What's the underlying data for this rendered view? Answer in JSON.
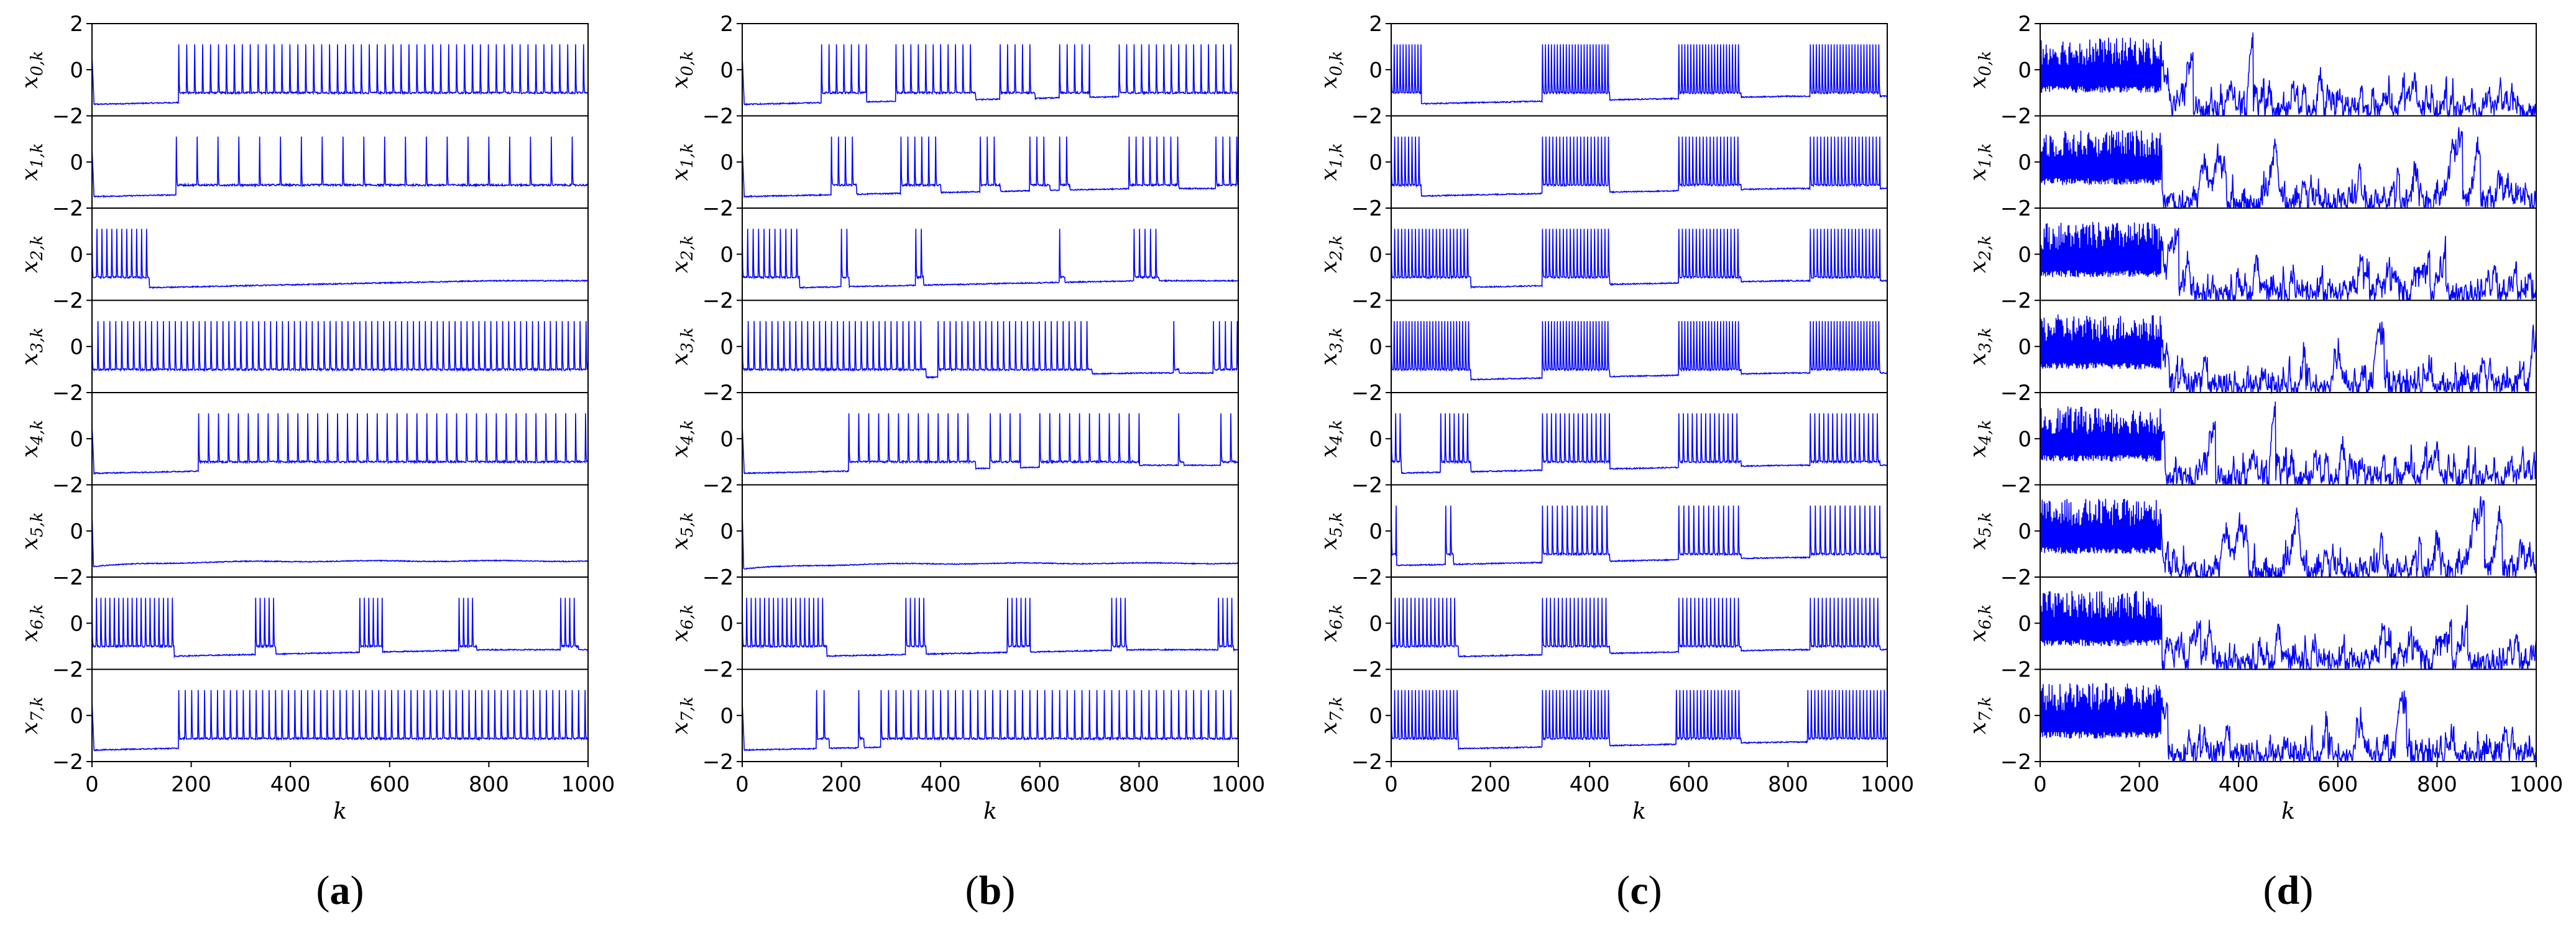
{
  "figure": {
    "panel_labels": [
      {
        "open": "(",
        "letter": "a",
        "close": ")"
      },
      {
        "open": "(",
        "letter": "b",
        "close": ")"
      },
      {
        "open": "(",
        "letter": "c",
        "close": ")"
      },
      {
        "open": "(",
        "letter": "d",
        "close": ")"
      }
    ]
  },
  "chart_data": [
    {
      "type": "line",
      "panel": "a",
      "xlabel": "k",
      "xlim": [
        0,
        1000
      ],
      "ylim": [
        -2,
        2
      ],
      "xticks": [
        "0",
        "200",
        "400",
        "600",
        "800",
        "1000"
      ],
      "yticks": [
        "2",
        "0",
        "−2"
      ],
      "line_color": "#0000ff",
      "series": [
        {
          "name": "x0,k",
          "label_main": "x",
          "label_sub": "0,k",
          "pattern": "spikes",
          "onset": 175,
          "interval": 16
        },
        {
          "name": "x1,k",
          "label_main": "x",
          "label_sub": "1,k",
          "pattern": "spikes",
          "onset": 170,
          "interval": 42
        },
        {
          "name": "x2,k",
          "label_main": "x",
          "label_sub": "2,k",
          "pattern": "early-burst",
          "onset": 0,
          "end": 115,
          "interval": 10
        },
        {
          "name": "x3,k",
          "label_main": "x",
          "label_sub": "3,k",
          "pattern": "spikes",
          "onset": 0,
          "interval": 12
        },
        {
          "name": "x4,k",
          "label_main": "x",
          "label_sub": "4,k",
          "pattern": "spikes",
          "onset": 215,
          "interval": 20
        },
        {
          "name": "x5,k",
          "label_main": "x",
          "label_sub": "5,k",
          "pattern": "silent",
          "baseline": -1.3
        },
        {
          "name": "x6,k",
          "label_main": "x",
          "label_sub": "6,k",
          "pattern": "bursts",
          "bursts": [
            [
              0,
              165
            ],
            [
              330,
              370
            ],
            [
              540,
              585
            ],
            [
              740,
              775
            ],
            [
              945,
              980
            ]
          ],
          "interval": 9
        },
        {
          "name": "x7,k",
          "label_main": "x",
          "label_sub": "7,k",
          "pattern": "spikes",
          "onset": 175,
          "interval": 13
        }
      ]
    },
    {
      "type": "line",
      "panel": "b",
      "xlabel": "k",
      "xlim": [
        0,
        1000
      ],
      "ylim": [
        -2,
        2
      ],
      "xticks": [
        "0",
        "200",
        "400",
        "600",
        "800",
        "1000"
      ],
      "yticks": [
        "2",
        "0",
        "−2"
      ],
      "line_color": "#0000ff",
      "series": [
        {
          "name": "x0,k",
          "label_main": "x",
          "label_sub": "0,k",
          "pattern": "bursts",
          "bursts": [
            [
              160,
              250
            ],
            [
              310,
              470
            ],
            [
              520,
              590
            ],
            [
              640,
              700
            ],
            [
              760,
              1000
            ]
          ],
          "interval": 15
        },
        {
          "name": "x1,k",
          "label_main": "x",
          "label_sub": "1,k",
          "pattern": "bursts",
          "bursts": [
            [
              180,
              230
            ],
            [
              320,
              400
            ],
            [
              480,
              520
            ],
            [
              580,
              620
            ],
            [
              640,
              660
            ],
            [
              780,
              880
            ],
            [
              955,
              1000
            ]
          ],
          "interval": 14
        },
        {
          "name": "x2,k",
          "label_main": "x",
          "label_sub": "2,k",
          "pattern": "bursts",
          "bursts": [
            [
              0,
              115
            ],
            [
              200,
              215
            ],
            [
              350,
              365
            ],
            [
              640,
              650
            ],
            [
              790,
              840
            ]
          ],
          "interval": 11
        },
        {
          "name": "x3,k",
          "label_main": "x",
          "label_sub": "3,k",
          "pattern": "bursts",
          "bursts": [
            [
              0,
              370
            ],
            [
              395,
              705
            ],
            [
              870,
              880
            ],
            [
              950,
              1000
            ]
          ],
          "interval": 12
        },
        {
          "name": "x4,k",
          "label_main": "x",
          "label_sub": "4,k",
          "pattern": "bursts",
          "bursts": [
            [
              215,
              470
            ],
            [
              500,
              560
            ],
            [
              600,
              800
            ],
            [
              880,
              890
            ],
            [
              965,
              1000
            ]
          ],
          "interval": 20
        },
        {
          "name": "x5,k",
          "label_main": "x",
          "label_sub": "5,k",
          "pattern": "silent",
          "baseline": -1.4
        },
        {
          "name": "x6,k",
          "label_main": "x",
          "label_sub": "6,k",
          "pattern": "bursts",
          "bursts": [
            [
              0,
              170
            ],
            [
              330,
              370
            ],
            [
              535,
              580
            ],
            [
              745,
              775
            ],
            [
              960,
              990
            ]
          ],
          "interval": 9
        },
        {
          "name": "x7,k",
          "label_main": "x",
          "label_sub": "7,k",
          "pattern": "bursts",
          "bursts": [
            [
              150,
              175
            ],
            [
              235,
              245
            ],
            [
              280,
              1000
            ]
          ],
          "interval": 15
        }
      ]
    },
    {
      "type": "line",
      "panel": "c",
      "xlabel": "k",
      "xlim": [
        0,
        1000
      ],
      "ylim": [
        -2,
        2
      ],
      "xticks": [
        "0",
        "200",
        "400",
        "600",
        "800",
        "1000"
      ],
      "yticks": [
        "2",
        "0",
        "−2"
      ],
      "line_color": "#0000ff",
      "series": [
        {
          "name": "x0,k",
          "label_main": "x",
          "label_sub": "0,k",
          "pattern": "bursts",
          "bursts": [
            [
              0,
              60
            ],
            [
              305,
              440
            ],
            [
              580,
              705
            ],
            [
              845,
              985
            ]
          ],
          "interval": 6
        },
        {
          "name": "x1,k",
          "label_main": "x",
          "label_sub": "1,k",
          "pattern": "bursts",
          "bursts": [
            [
              0,
              60
            ],
            [
              305,
              440
            ],
            [
              580,
              705
            ],
            [
              845,
              985
            ]
          ],
          "interval": 7
        },
        {
          "name": "x2,k",
          "label_main": "x",
          "label_sub": "2,k",
          "pattern": "bursts",
          "bursts": [
            [
              0,
              160
            ],
            [
              305,
              440
            ],
            [
              580,
              705
            ],
            [
              845,
              985
            ]
          ],
          "interval": 7
        },
        {
          "name": "x3,k",
          "label_main": "x",
          "label_sub": "3,k",
          "pattern": "bursts",
          "bursts": [
            [
              0,
              160
            ],
            [
              305,
              440
            ],
            [
              580,
              705
            ],
            [
              845,
              985
            ]
          ],
          "interval": 6
        },
        {
          "name": "x4,k",
          "label_main": "x",
          "label_sub": "4,k",
          "pattern": "bursts",
          "bursts": [
            [
              0,
              20
            ],
            [
              100,
              160
            ],
            [
              305,
              440
            ],
            [
              580,
              705
            ],
            [
              845,
              985
            ]
          ],
          "interval": 9
        },
        {
          "name": "x5,k",
          "label_main": "x",
          "label_sub": "5,k",
          "pattern": "bursts",
          "bursts": [
            [
              0,
              10
            ],
            [
              110,
              125
            ],
            [
              305,
              440
            ],
            [
              580,
              705
            ],
            [
              845,
              985
            ]
          ],
          "interval": 10
        },
        {
          "name": "x6,k",
          "label_main": "x",
          "label_sub": "6,k",
          "pattern": "bursts",
          "bursts": [
            [
              0,
              135
            ],
            [
              305,
              440
            ],
            [
              580,
              705
            ],
            [
              845,
              985
            ]
          ],
          "interval": 8
        },
        {
          "name": "x7,k",
          "label_main": "x",
          "label_sub": "7,k",
          "pattern": "bursts",
          "bursts": [
            [
              0,
              135
            ],
            [
              305,
              440
            ],
            [
              575,
              705
            ],
            [
              840,
              1000
            ]
          ],
          "interval": 7
        }
      ]
    },
    {
      "type": "line",
      "panel": "d",
      "xlabel": "k",
      "xlim": [
        0,
        1000
      ],
      "ylim": [
        -2,
        2
      ],
      "xticks": [
        "0",
        "200",
        "400",
        "600",
        "800",
        "1000"
      ],
      "yticks": [
        "2",
        "0",
        "−2"
      ],
      "line_color": "#0000ff",
      "series": [
        {
          "name": "x0,k",
          "label_main": "x",
          "label_sub": "0,k",
          "pattern": "chaotic",
          "dense_until": 245
        },
        {
          "name": "x1,k",
          "label_main": "x",
          "label_sub": "1,k",
          "pattern": "chaotic",
          "dense_until": 245
        },
        {
          "name": "x2,k",
          "label_main": "x",
          "label_sub": "2,k",
          "pattern": "chaotic",
          "dense_until": 245
        },
        {
          "name": "x3,k",
          "label_main": "x",
          "label_sub": "3,k",
          "pattern": "chaotic",
          "dense_until": 245
        },
        {
          "name": "x4,k",
          "label_main": "x",
          "label_sub": "4,k",
          "pattern": "chaotic",
          "dense_until": 245
        },
        {
          "name": "x5,k",
          "label_main": "x",
          "label_sub": "5,k",
          "pattern": "chaotic",
          "dense_until": 245
        },
        {
          "name": "x6,k",
          "label_main": "x",
          "label_sub": "6,k",
          "pattern": "chaotic",
          "dense_until": 245
        },
        {
          "name": "x7,k",
          "label_main": "x",
          "label_sub": "7,k",
          "pattern": "chaotic",
          "dense_until": 245
        }
      ]
    }
  ]
}
